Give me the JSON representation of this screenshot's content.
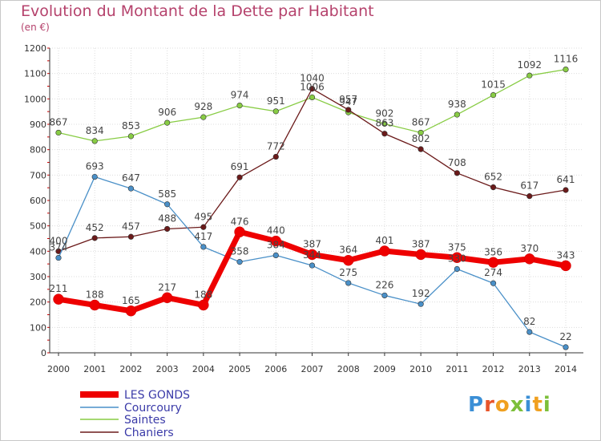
{
  "title": "Evolution du Montant de la Dette par Habitant",
  "subtitle": "(en €)",
  "logo_text": "Proxiti",
  "chart_data": {
    "type": "line",
    "title": "Evolution du Montant de la Dette par Habitant",
    "subtitle": "(en €)",
    "categories": [
      "2000",
      "2001",
      "2002",
      "2003",
      "2004",
      "2005",
      "2006",
      "2007",
      "2008",
      "2009",
      "2010",
      "2011",
      "2012",
      "2013",
      "2014"
    ],
    "ylim": [
      0,
      1200
    ],
    "yticks": [
      0,
      100,
      200,
      300,
      400,
      500,
      600,
      700,
      800,
      900,
      1000,
      1100,
      1200
    ],
    "ytick_labels": [
      "0",
      "100",
      "200",
      "300",
      "400",
      "500",
      "600",
      "700",
      "800",
      "900",
      "1000",
      "1100",
      "1200"
    ],
    "grid": true,
    "legend_position": "bottom-left",
    "series": [
      {
        "name": "LES GONDS",
        "color": "#ee0000",
        "values": [
          211,
          188,
          165,
          217,
          188,
          476,
          440,
          387,
          364,
          401,
          387,
          375,
          356,
          370,
          343
        ],
        "labels": [
          "211",
          "188",
          "165",
          "217",
          "188",
          "476",
          "440",
          "387",
          "364",
          "401",
          "387",
          "375",
          "356",
          "370",
          "343"
        ]
      },
      {
        "name": "Courcoury",
        "color": "#4a90c8",
        "values": [
          374,
          693,
          647,
          585,
          417,
          358,
          384,
          344,
          275,
          226,
          192,
          330,
          274,
          82,
          22
        ],
        "labels": [
          "374",
          "693",
          "647",
          "585",
          "417",
          "358",
          "384",
          "344",
          "275",
          "226",
          "192",
          "330",
          "274",
          "82",
          "22"
        ]
      },
      {
        "name": "Saintes",
        "color": "#88cc44",
        "values": [
          867,
          834,
          853,
          906,
          928,
          974,
          951,
          1006,
          947,
          902,
          867,
          938,
          1015,
          1092,
          1116
        ],
        "labels": [
          "867",
          "834",
          "853",
          "906",
          "928",
          "974",
          "951",
          "1006",
          "947",
          "902",
          "867",
          "938",
          "1015",
          "1092",
          "1116"
        ]
      },
      {
        "name": "Chaniers",
        "color": "#6b1a1a",
        "values": [
          400,
          452,
          457,
          488,
          495,
          691,
          772,
          1040,
          957,
          863,
          802,
          708,
          652,
          617,
          641
        ],
        "labels": [
          "400",
          "452",
          "457",
          "488",
          "495",
          "691",
          "772",
          "1040",
          "957",
          "863",
          "802",
          "708",
          "652",
          "617",
          "641"
        ]
      }
    ]
  }
}
